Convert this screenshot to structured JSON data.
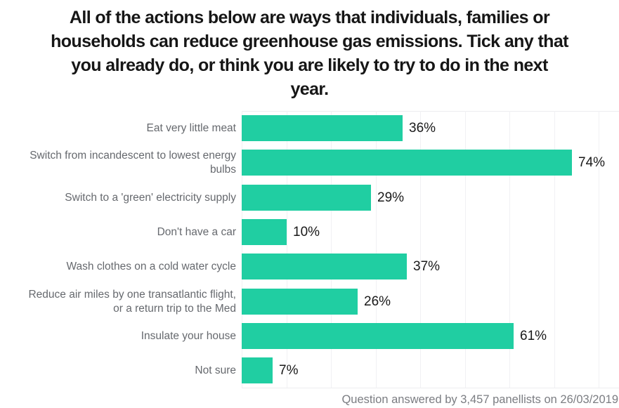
{
  "title": {
    "text": "All of the actions below are ways that individuals, families or households can reduce greenhouse gas emissions. Tick any that you already do, or think you are likely to try to do in the next year.",
    "lines": [
      "All of the actions below are ways that individuals, families or",
      "households can reduce greenhouse gas emissions. Tick any that",
      "you already do, or think you are likely to try to do in the next",
      "year."
    ]
  },
  "footer": {
    "text": "Question answered by 3,457 panellists on 26/03/2019"
  },
  "chart_data": {
    "type": "bar",
    "orientation": "horizontal",
    "title": "All of the actions below are ways that individuals, families or households can reduce greenhouse gas emissions. Tick any that you already do, or think you are likely to try to do in the next year.",
    "categories": [
      "Eat very little meat",
      "Switch from incandescent to lowest energy bulbs",
      "Switch to a 'green' electricity supply",
      "Don't have a car",
      "Wash clothes on a cold water cycle",
      "Reduce air miles by one transatlantic flight, or a return trip to the Med",
      "Insulate your house",
      "Not sure"
    ],
    "label_lines": [
      [
        "Eat very little meat"
      ],
      [
        "Switch from incandescent to lowest energy",
        "bulbs"
      ],
      [
        "Switch to a 'green' electricity supply"
      ],
      [
        "Don't have a car"
      ],
      [
        "Wash clothes on a cold water cycle"
      ],
      [
        "Reduce air miles by one transatlantic flight,",
        "or a return trip to the Med"
      ],
      [
        "Insulate your house"
      ],
      [
        "Not sure"
      ]
    ],
    "values": [
      36,
      74,
      29,
      10,
      37,
      26,
      61,
      7
    ],
    "value_labels": [
      "36%",
      "74%",
      "29%",
      "10%",
      "37%",
      "26%",
      "61%",
      "7%"
    ],
    "unit": "%",
    "xlabel": "",
    "ylabel": "",
    "xlim": [
      0,
      85
    ],
    "grid_percents": [
      0,
      10,
      20,
      30,
      40,
      50,
      60,
      70,
      80
    ],
    "grid": "vertical-light",
    "legend": "none",
    "bar_color": "#20CEA2",
    "category_label_color": "#66696E",
    "value_label_color": "#191919",
    "gridline_color": "#F1F1F4",
    "title_color": "#161616",
    "footer_color": "#7B7D82"
  }
}
